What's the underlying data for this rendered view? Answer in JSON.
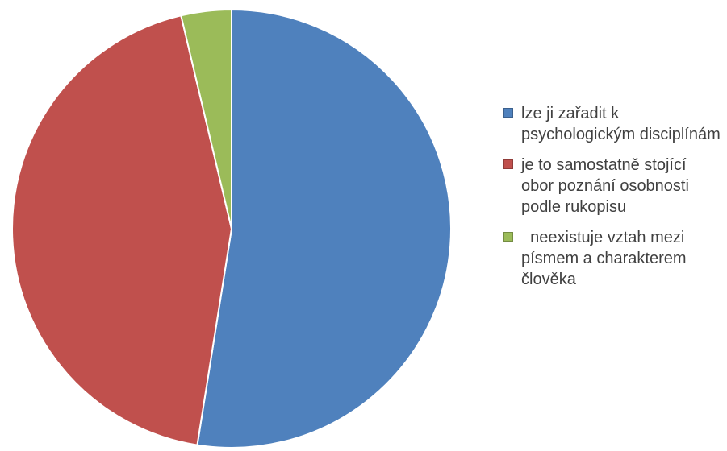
{
  "chart_data": {
    "type": "pie",
    "title": "",
    "categories": [
      "lze ji zařadit k psychologickým disciplínám",
      "je to samostatně stojící obor poznání osobnosti podle rukopisu",
      "  neexistuje vztah mezi písmem a charakterem člověka"
    ],
    "values": [
      52.5,
      43.8,
      3.7
    ],
    "colors": [
      "#4F81BD",
      "#C0504D",
      "#9BBB59"
    ],
    "legend_position": "right"
  },
  "legend": {
    "items": [
      {
        "label": "lze ji zařadit k psychologickým disciplínám",
        "color": "#4F81BD"
      },
      {
        "label": "je to samostatně stojící obor poznání osobnosti podle rukopisu",
        "color": "#C0504D"
      },
      {
        "label": "  neexistuje vztah mezi písmem a charakterem člověka",
        "color": "#9BBB59"
      }
    ]
  }
}
